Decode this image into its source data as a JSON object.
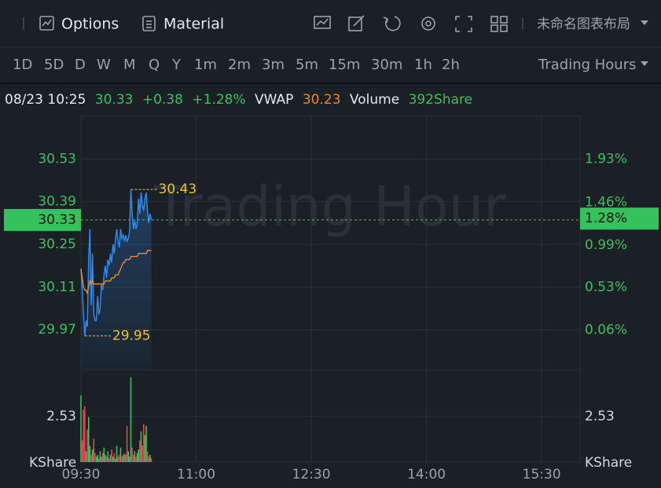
{
  "toolbar": {
    "options": "Options",
    "material": "Material",
    "layout": "未命名图表布局"
  },
  "intervals": {
    "items": [
      "1D",
      "5D",
      "D",
      "W",
      "M",
      "Q",
      "Y",
      "1m",
      "2m",
      "3m",
      "5m",
      "15m",
      "30m",
      "1h",
      "2h"
    ],
    "selected": 0,
    "selected_color": "#f2c12e",
    "trading_hours": "Trading Hours"
  },
  "info": {
    "datetime": "08/23 10:25",
    "price": "30.33",
    "change": "+0.38",
    "change_pct": "+1.28%",
    "vwap_label": "VWAP",
    "vwap": "30.23",
    "volume_label": "Volume",
    "volume": "392Share"
  },
  "chart_data": {
    "type": "line",
    "watermark": "Trading Hour",
    "x": [
      "09:30",
      "09:31",
      "09:32",
      "09:33",
      "09:34",
      "09:35",
      "09:36",
      "09:37",
      "09:38",
      "09:39",
      "09:40",
      "09:41",
      "09:42",
      "09:43",
      "09:44",
      "09:45",
      "09:46",
      "09:47",
      "09:48",
      "09:49",
      "09:50",
      "09:51",
      "09:52",
      "09:53",
      "09:54",
      "09:55",
      "09:56",
      "09:57",
      "09:58",
      "09:59",
      "10:00",
      "10:01",
      "10:02",
      "10:03",
      "10:04",
      "10:05",
      "10:06",
      "10:07",
      "10:08",
      "10:09",
      "10:10",
      "10:11",
      "10:12",
      "10:13",
      "10:14",
      "10:15",
      "10:16",
      "10:17",
      "10:18",
      "10:19",
      "10:20",
      "10:21",
      "10:22",
      "10:23",
      "10:24",
      "10:25"
    ],
    "xlim": [
      "09:30",
      "16:00"
    ],
    "xticks": [
      "09:30",
      "11:00",
      "12:30",
      "14:00",
      "15:30"
    ],
    "ylim": [
      29.84,
      30.67
    ],
    "yticks": [
      29.97,
      30.11,
      30.25,
      30.39,
      30.53
    ],
    "y2lim": [
      -0.37,
      2.4
    ],
    "y2ticks": [
      {
        "value": 0.06,
        "label": "0.06%"
      },
      {
        "value": 0.53,
        "label": "0.53%"
      },
      {
        "value": 0.99,
        "label": "0.99%"
      },
      {
        "value": 1.46,
        "label": "1.46%"
      },
      {
        "value": 1.93,
        "label": "1.93%"
      }
    ],
    "grid": true,
    "axis_color": "#3fbf5e",
    "series": [
      {
        "color": "#2f8ef4",
        "fill": true,
        "values": [
          30.17,
          30.1,
          30.02,
          29.95,
          30.0,
          29.98,
          30.2,
          30.3,
          30.05,
          30.22,
          30.02,
          30.0,
          30.0,
          30.08,
          30.02,
          30.04,
          30.12,
          30.1,
          30.15,
          30.18,
          30.14,
          30.2,
          30.18,
          30.22,
          30.19,
          30.25,
          30.22,
          30.27,
          30.3,
          30.26,
          30.24,
          30.3,
          30.27,
          30.28,
          30.26,
          30.28,
          30.26,
          30.27,
          30.29,
          30.43,
          30.35,
          30.3,
          30.33,
          30.3,
          30.32,
          30.4,
          30.35,
          30.42,
          30.38,
          30.36,
          30.4,
          30.42,
          30.36,
          30.32,
          30.35,
          30.33
        ]
      },
      {
        "color": "#e8892c",
        "fill": false,
        "values": [
          30.17,
          30.14,
          30.11,
          30.1,
          30.1,
          30.09,
          30.11,
          30.13,
          30.12,
          30.13,
          30.12,
          30.12,
          30.12,
          30.12,
          30.12,
          30.12,
          30.12,
          30.12,
          30.12,
          30.13,
          30.13,
          30.13,
          30.13,
          30.13,
          30.14,
          30.14,
          30.14,
          30.15,
          30.15,
          30.15,
          30.16,
          30.17,
          30.18,
          30.19,
          30.19,
          30.2,
          30.2,
          30.2,
          30.2,
          30.21,
          30.21,
          30.21,
          30.21,
          30.21,
          30.21,
          30.22,
          30.22,
          30.22,
          30.22,
          30.22,
          30.22,
          30.22,
          30.23,
          30.23,
          30.23,
          30.23
        ]
      }
    ],
    "high": 30.43,
    "low": 29.95,
    "annotation_color": "#f2c12e",
    "last": 30.33,
    "last_pct": {
      "value": 1.28,
      "label": "1.28%"
    },
    "last_color": "#35c25c",
    "volume": {
      "type": "bar",
      "values": [
        3.7,
        1.2,
        2.9,
        3.1,
        0.6,
        1.8,
        2.5,
        0.9,
        0.4,
        0.7,
        1.3,
        0.5,
        0.3,
        0.4,
        0.2,
        0.6,
        0.3,
        0.5,
        0.8,
        0.4,
        0.3,
        0.6,
        0.2,
        0.4,
        0.7,
        0.3,
        0.5,
        0.2,
        0.9,
        0.3,
        0.4,
        0.8,
        0.3,
        0.4,
        0.5,
        0.4,
        2.0,
        0.6,
        0.3,
        4.7,
        0.8,
        0.4,
        0.6,
        0.3,
        0.5,
        0.7,
        1.2,
        1.7,
        0.9,
        2.1,
        1.5,
        2.0,
        0.6,
        0.3,
        0.4,
        0.2
      ],
      "ylim": [
        0,
        5.1
      ],
      "yticks": [
        2.53
      ],
      "unit": "KShare",
      "up_color": "#3fbf5e",
      "down_color": "#e0464e"
    }
  }
}
